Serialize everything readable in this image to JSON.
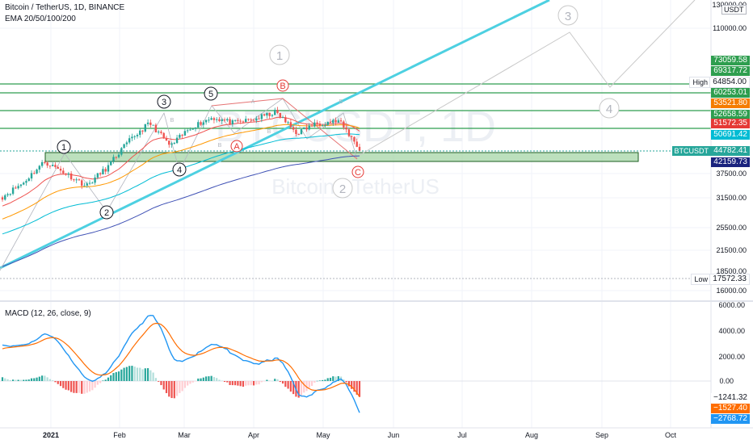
{
  "header": {
    "symbol_title": "Bitcoin / TetherUS, 1D, BINANCE",
    "ema_label": "EMA 20/50/100/200",
    "currency_badge": "USDT",
    "watermark_symbol": "BTCUSDT, 1D",
    "watermark_name": "Bitcoin / TetherUS"
  },
  "price_axis": {
    "ticks": [
      "130000.00",
      "110000.00",
      "37500.00",
      "31500.00",
      "25500.00",
      "21500.00",
      "18500.00",
      "16000.00"
    ],
    "labels": [
      {
        "text": "73059.58",
        "bg": "#2e9e4f"
      },
      {
        "text": "69317.72",
        "bg": "#2e9e4f"
      },
      {
        "text": "64854.00",
        "bg": "#ffffff",
        "prefix": "High"
      },
      {
        "text": "60253.01",
        "bg": "#2e9e4f"
      },
      {
        "text": "53521.80",
        "bg": "#f57c00"
      },
      {
        "text": "52658.59",
        "bg": "#2e9e4f"
      },
      {
        "text": "51572.35",
        "bg": "#e53935"
      },
      {
        "text": "50691.42",
        "bg": "#00bcd4"
      },
      {
        "text": "44782.41",
        "bg": "#26a69a",
        "prefix": "BTCUSDT"
      },
      {
        "text": "42159.73",
        "bg": "#1a237e"
      },
      {
        "text": "17572.33",
        "bg": "#ffffff",
        "prefix": "Low"
      }
    ]
  },
  "macd": {
    "title": "MACD (12, 26, close, 9)",
    "ticks": [
      "6000.00",
      "4000.00",
      "2000.00",
      "0.00"
    ],
    "labels": [
      {
        "text": "−1241.32",
        "bg": "#ffffff"
      },
      {
        "text": "−1527.40",
        "bg": "#ff6d00"
      },
      {
        "text": "−2768.72",
        "bg": "#2196f3"
      }
    ]
  },
  "time_axis": [
    "2021",
    "Feb",
    "Mar",
    "Apr",
    "May",
    "Jun",
    "Jul",
    "Aug",
    "Sep",
    "Oct"
  ],
  "waves": {
    "primary": [
      "1",
      "2",
      "3",
      "4",
      "5"
    ],
    "corrective": [
      "A",
      "B",
      "C"
    ],
    "projection": [
      "1",
      "2",
      "3",
      "4"
    ],
    "small": [
      "B",
      "A",
      "B",
      "B",
      "B"
    ]
  },
  "chart_data": {
    "type": "candlestick",
    "symbol": "BTCUSDT",
    "timeframe": "1D",
    "x": [
      "2021",
      "Feb",
      "Mar",
      "Apr",
      "May",
      "Jun",
      "Jul",
      "Aug",
      "Sep",
      "Oct"
    ],
    "close_path": [
      29000,
      33000,
      40000,
      36000,
      32000,
      38000,
      48000,
      57000,
      46000,
      55000,
      60000,
      57000,
      59000,
      63000,
      52000,
      57000,
      58000,
      44782
    ],
    "current_price": 44782.41,
    "high": 64854.0,
    "low": 17572.33,
    "horizontal_levels": [
      73059.58,
      69317.72,
      64854.0,
      60253.01,
      53521.8,
      52658.59,
      51572.35,
      50691.42,
      42159.73
    ],
    "support_zone": [
      41500,
      44000
    ],
    "ema_periods": [
      20,
      50,
      100,
      200
    ],
    "macd": {
      "params": [
        12,
        26,
        9
      ],
      "macd": -2768.72,
      "signal": -1527.4,
      "histogram": -1241.32
    }
  }
}
